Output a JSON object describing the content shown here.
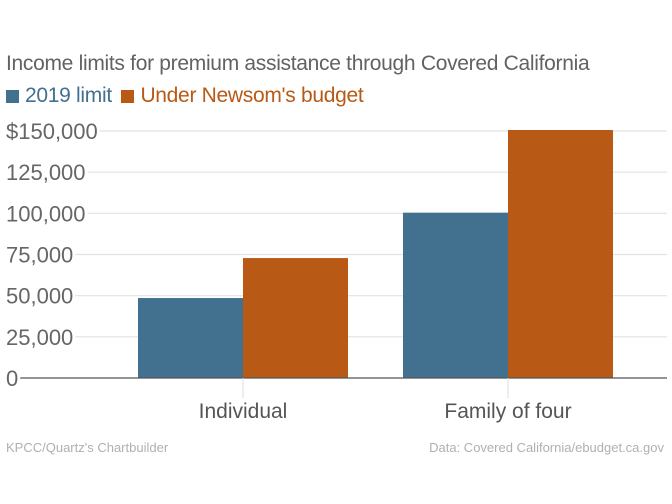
{
  "chart_data": {
    "type": "bar",
    "title": "Income limits for premium assistance through Covered California",
    "categories": [
      "Individual",
      "Family of four"
    ],
    "series": [
      {
        "name": "2019 limit",
        "color": "#41718f",
        "values": [
          48560,
          100400
        ]
      },
      {
        "name": "Under Newsom's budget",
        "color": "#b85916",
        "values": [
          72840,
          150600
        ]
      }
    ],
    "xlabel": "",
    "ylabel": "",
    "ylim": [
      0,
      150000
    ],
    "yticks": [
      0,
      25000,
      50000,
      75000,
      100000,
      125000,
      150000
    ],
    "ytick_labels": [
      "0",
      "25,000",
      "50,000",
      "75,000",
      "100,000",
      "125,000",
      "$150,000"
    ],
    "grid": true,
    "legend": "top-left"
  },
  "footer": {
    "credit": "KPCC/Quartz's Chartbuilder",
    "source": "Data: Covered California/ebudget.ca.gov"
  }
}
